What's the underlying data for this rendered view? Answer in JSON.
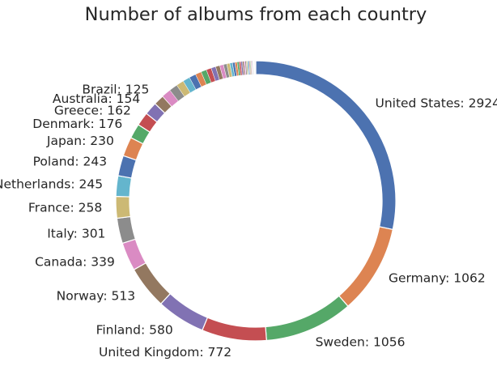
{
  "chart_data": {
    "type": "pie",
    "style": "donut",
    "title": "Number of albums from each country",
    "start": "top, clockwise",
    "labeled_slices": [
      {
        "label": "United States",
        "value": 2924,
        "color": "#4c72b0"
      },
      {
        "label": "Germany",
        "value": 1062,
        "color": "#dd8452"
      },
      {
        "label": "Sweden",
        "value": 1056,
        "color": "#55a868"
      },
      {
        "label": "United Kingdom",
        "value": 772,
        "color": "#c44e52"
      },
      {
        "label": "Finland",
        "value": 580,
        "color": "#8172b3"
      },
      {
        "label": "Norway",
        "value": 513,
        "color": "#937860"
      },
      {
        "label": "Canada",
        "value": 339,
        "color": "#da8bc3"
      },
      {
        "label": "Italy",
        "value": 301,
        "color": "#8c8c8c"
      },
      {
        "label": "France",
        "value": 258,
        "color": "#ccb974"
      },
      {
        "label": "Netherlands",
        "value": 245,
        "color": "#64b5cd"
      },
      {
        "label": "Poland",
        "value": 243,
        "color": "#4c72b0"
      },
      {
        "label": "Japan",
        "value": 230,
        "color": "#dd8452"
      },
      {
        "label": "Denmark",
        "value": 176,
        "color": "#55a868"
      },
      {
        "label": "Greece",
        "value": 162,
        "color": "#c44e52"
      },
      {
        "label": "Australia",
        "value": 154,
        "color": "#8172b3"
      },
      {
        "label": "Brazil",
        "value": 125,
        "color": "#937860"
      }
    ],
    "unlabeled_slice_values": [
      110,
      100,
      90,
      85,
      80,
      72,
      66,
      60,
      55,
      50,
      45,
      40,
      36,
      32,
      29,
      26,
      23,
      21,
      19,
      17,
      15,
      14,
      13,
      12,
      11,
      10,
      9,
      8,
      7,
      6,
      5,
      5,
      4,
      4,
      3,
      3,
      2,
      2,
      2,
      1,
      1,
      1,
      1,
      1,
      1
    ],
    "palette": [
      "#4c72b0",
      "#dd8452",
      "#55a868",
      "#c44e52",
      "#8172b3",
      "#937860",
      "#da8bc3",
      "#8c8c8c",
      "#ccb974",
      "#64b5cd"
    ],
    "label_format": "{label}: {value}"
  }
}
